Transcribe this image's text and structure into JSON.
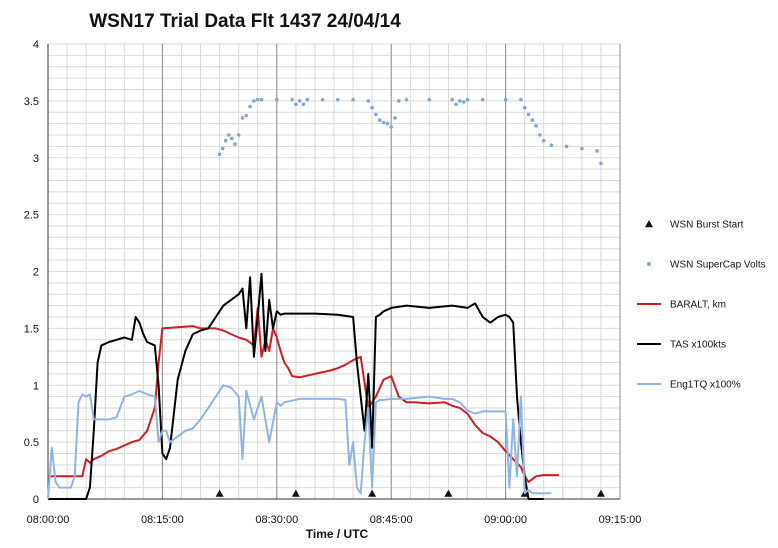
{
  "chart_data": {
    "type": "line",
    "title": "WSN17 Trial Data Flt 1437 24/04/14",
    "xlabel": "Time / UTC",
    "ylabel": "",
    "x_unit": "minutes after 08:00:00",
    "xlim": [
      0,
      75
    ],
    "ylim": [
      0,
      4
    ],
    "grid": true,
    "legend_position": "right",
    "x_ticks": [
      {
        "value": 0,
        "label": "08:00:00"
      },
      {
        "value": 15,
        "label": "08:15:00"
      },
      {
        "value": 30,
        "label": "08:30:00"
      },
      {
        "value": 45,
        "label": "08:45:00"
      },
      {
        "value": 60,
        "label": "09:00:00"
      },
      {
        "value": 75,
        "label": "09:15:00"
      }
    ],
    "y_ticks": [
      {
        "value": 0,
        "label": "0"
      },
      {
        "value": 0.5,
        "label": "0.5"
      },
      {
        "value": 1,
        "label": "1"
      },
      {
        "value": 1.5,
        "label": "1.5"
      },
      {
        "value": 2,
        "label": "2"
      },
      {
        "value": 2.5,
        "label": "2.5"
      },
      {
        "value": 3,
        "label": "3"
      },
      {
        "value": 3.5,
        "label": "3.5"
      },
      {
        "value": 4,
        "label": "4"
      }
    ],
    "series": [
      {
        "name": "WSN Burst Start",
        "kind": "markers",
        "color": "#111111",
        "x": [
          22.5,
          32.5,
          42.5,
          52.5,
          62.5,
          72.5
        ],
        "y": [
          0.03,
          0.03,
          0.03,
          0.03,
          0.03,
          0.03
        ]
      },
      {
        "name": "WSN SuperCap Volts",
        "kind": "dots",
        "color": "#7fa6d6",
        "x": [
          22.5,
          22.9,
          23.3,
          23.7,
          24.1,
          24.5,
          25.0,
          25.5,
          26.0,
          26.5,
          27.0,
          27.5,
          28.0,
          30.0,
          32.0,
          32.5,
          33.0,
          33.5,
          34.0,
          36.0,
          38.0,
          40.0,
          42.0,
          42.5,
          43.0,
          43.5,
          44.0,
          44.5,
          45.0,
          45.5,
          46.0,
          47.0,
          50.0,
          53.0,
          53.5,
          54.0,
          54.5,
          55.0,
          57.0,
          60.0,
          62.0,
          62.5,
          63.0,
          63.5,
          64.0,
          64.5,
          65.0,
          66.0,
          68.0,
          70.0,
          72.0,
          72.5
        ],
        "y": [
          3.03,
          3.08,
          3.15,
          3.2,
          3.17,
          3.12,
          3.2,
          3.35,
          3.37,
          3.45,
          3.5,
          3.51,
          3.51,
          3.51,
          3.51,
          3.47,
          3.5,
          3.47,
          3.51,
          3.51,
          3.51,
          3.51,
          3.5,
          3.44,
          3.38,
          3.33,
          3.31,
          3.3,
          3.27,
          3.35,
          3.5,
          3.51,
          3.51,
          3.51,
          3.47,
          3.5,
          3.49,
          3.51,
          3.51,
          3.51,
          3.51,
          3.44,
          3.38,
          3.33,
          3.28,
          3.2,
          3.15,
          3.11,
          3.1,
          3.08,
          3.06,
          2.95
        ]
      },
      {
        "name": "BARALT, km",
        "kind": "line",
        "color": "#cc1f1f",
        "x": [
          0,
          3,
          4.5,
          5,
          5.5,
          6,
          7,
          8,
          9,
          10,
          11,
          12,
          13,
          14,
          14.5,
          15,
          17,
          19,
          20,
          21,
          22,
          23,
          24,
          25,
          26,
          27,
          27.5,
          28,
          28.5,
          29,
          29.5,
          30,
          30.5,
          31,
          31.5,
          32,
          33,
          35,
          37,
          38,
          39,
          40,
          41,
          42,
          43,
          44,
          45,
          46,
          47,
          48,
          50,
          52,
          53,
          54,
          55,
          56,
          57,
          58,
          59,
          60,
          61,
          62,
          62.5,
          63,
          64,
          65,
          66,
          67
        ],
        "y": [
          0.2,
          0.2,
          0.2,
          0.35,
          0.32,
          0.35,
          0.38,
          0.42,
          0.44,
          0.47,
          0.5,
          0.52,
          0.6,
          0.8,
          1.2,
          1.5,
          1.51,
          1.52,
          1.5,
          1.5,
          1.5,
          1.48,
          1.45,
          1.42,
          1.4,
          1.35,
          1.68,
          1.25,
          1.4,
          1.3,
          1.5,
          1.42,
          1.3,
          1.2,
          1.15,
          1.08,
          1.07,
          1.1,
          1.13,
          1.15,
          1.18,
          1.22,
          1.25,
          0.8,
          0.9,
          1.05,
          1.08,
          0.9,
          0.85,
          0.85,
          0.84,
          0.85,
          0.82,
          0.8,
          0.75,
          0.65,
          0.58,
          0.55,
          0.5,
          0.42,
          0.35,
          0.28,
          0.2,
          0.15,
          0.2,
          0.21,
          0.21,
          0.21
        ]
      },
      {
        "name": "TAS x100kts",
        "kind": "line",
        "color": "#000000",
        "x": [
          0,
          5,
          5.5,
          6,
          6.5,
          7,
          8,
          9,
          10,
          11,
          11.5,
          12,
          12.5,
          13,
          14,
          14.5,
          15,
          15.5,
          16,
          17,
          18,
          19,
          20,
          21,
          22,
          23,
          24,
          25,
          25.5,
          26,
          26.5,
          27,
          27.5,
          28,
          28.5,
          29,
          29.5,
          30,
          30.5,
          31,
          32,
          35,
          38,
          40,
          40.5,
          41,
          41.5,
          42,
          42.5,
          43,
          43.5,
          44,
          45,
          47,
          50,
          53,
          55,
          56,
          57,
          58,
          59,
          60,
          60.5,
          61,
          61.5,
          62,
          62.5,
          63,
          64,
          65
        ],
        "y": [
          0,
          0,
          0.1,
          0.6,
          1.2,
          1.35,
          1.38,
          1.4,
          1.42,
          1.4,
          1.6,
          1.55,
          1.45,
          1.38,
          1.35,
          1.0,
          0.4,
          0.35,
          0.45,
          1.05,
          1.3,
          1.45,
          1.48,
          1.5,
          1.6,
          1.7,
          1.75,
          1.8,
          1.85,
          1.5,
          1.95,
          1.25,
          1.6,
          1.98,
          1.3,
          1.75,
          1.5,
          1.65,
          1.62,
          1.63,
          1.63,
          1.63,
          1.62,
          1.6,
          1.2,
          0.9,
          0.6,
          1.1,
          0.45,
          1.6,
          1.62,
          1.65,
          1.68,
          1.7,
          1.68,
          1.7,
          1.68,
          1.72,
          1.6,
          1.55,
          1.6,
          1.62,
          1.6,
          1.55,
          0.9,
          0.5,
          0.2,
          0.0,
          0.0,
          0.0
        ]
      },
      {
        "name": "Eng1TQ x100%",
        "kind": "line",
        "color": "#8fb4e3",
        "x": [
          0,
          0.5,
          1,
          1.5,
          2,
          3,
          3.5,
          4,
          4.5,
          5,
          5.5,
          6,
          7,
          8,
          9,
          10,
          11,
          12,
          13,
          14,
          14.5,
          15,
          15.5,
          16,
          17,
          18,
          19,
          20,
          21,
          22,
          23,
          24,
          25,
          25.5,
          26,
          27,
          28,
          29,
          30,
          30.5,
          31,
          33,
          35,
          37,
          38,
          39,
          39.5,
          40,
          40.5,
          41,
          41.5,
          42,
          42.5,
          43,
          43.5,
          44,
          45,
          47,
          50,
          52,
          53,
          54,
          55,
          56,
          57,
          58,
          59,
          60,
          60.5,
          61,
          61.5,
          62,
          62.5,
          63,
          63.5,
          64,
          65,
          66
        ],
        "y": [
          0.0,
          0.45,
          0.15,
          0.1,
          0.1,
          0.1,
          0.2,
          0.85,
          0.92,
          0.9,
          0.92,
          0.7,
          0.7,
          0.7,
          0.72,
          0.9,
          0.92,
          0.95,
          0.92,
          0.9,
          0.5,
          0.6,
          0.6,
          0.5,
          0.55,
          0.6,
          0.62,
          0.7,
          0.8,
          0.9,
          1.0,
          0.98,
          0.9,
          0.35,
          0.95,
          0.7,
          0.9,
          0.5,
          0.85,
          0.82,
          0.85,
          0.88,
          0.88,
          0.88,
          0.88,
          0.87,
          0.3,
          0.5,
          0.1,
          0.05,
          0.5,
          0.8,
          0.1,
          0.85,
          0.87,
          0.87,
          0.88,
          0.88,
          0.9,
          0.88,
          0.88,
          0.85,
          0.78,
          0.75,
          0.77,
          0.77,
          0.77,
          0.77,
          0.1,
          0.7,
          0.2,
          0.9,
          0.05,
          0.08,
          0.05,
          0.05,
          0.05,
          0.05
        ]
      }
    ]
  }
}
